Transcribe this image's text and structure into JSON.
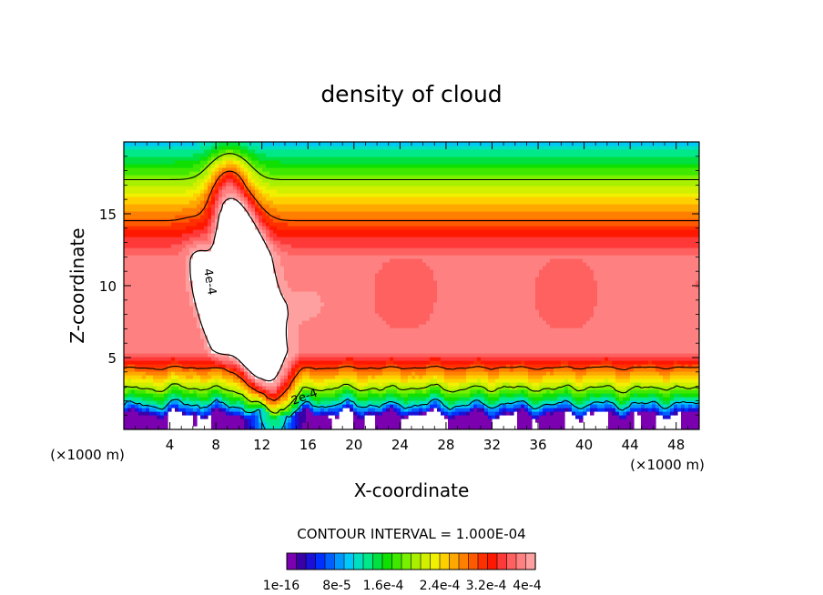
{
  "chart_data": {
    "type": "heatmap",
    "title": "density of cloud",
    "xlabel": "X-coordinate",
    "ylabel": "Z-coordinate",
    "x_unit": "(×1000 m)",
    "z_unit": "(×1000 m)",
    "xlim": [
      0,
      50
    ],
    "ylim": [
      0,
      20
    ],
    "x_ticks": [
      "4",
      "8",
      "12",
      "16",
      "20",
      "24",
      "28",
      "32",
      "36",
      "40",
      "44",
      "48"
    ],
    "y_ticks": [
      "5",
      "10",
      "15"
    ],
    "contour_interval_text": "CONTOUR INTERVAL = 1.000E-04",
    "contour_labels": [
      "4e-4",
      "2e-4"
    ],
    "colorbar": {
      "tick_labels": [
        "1e-16",
        "8e-5",
        "1.6e-4",
        "2.4e-4",
        "3.2e-4",
        "4e-4"
      ],
      "colors": [
        "#7a00b0",
        "#3a00a8",
        "#1a10d8",
        "#0030ff",
        "#0060ff",
        "#0098ff",
        "#00c8f8",
        "#00e0c0",
        "#00e888",
        "#00e040",
        "#10e000",
        "#40e800",
        "#78f000",
        "#a8f000",
        "#d0f000",
        "#f0f000",
        "#ffd000",
        "#ffa800",
        "#ff8000",
        "#ff5a00",
        "#ff3000",
        "#ff1800",
        "#ff3838",
        "#ff6060",
        "#ff8080",
        "#ffa0a0"
      ]
    },
    "description_fields": {
      "structure": "layered field: zero near z<1, rising to max (~3.8e-4) at z 7-12, decreasing above to ~1e-4 at z 20; diagonal ridge from x=13,z=2 to x=9,z=16 with peak >4e-4 near x=6-9, z=4.5-13"
    }
  }
}
